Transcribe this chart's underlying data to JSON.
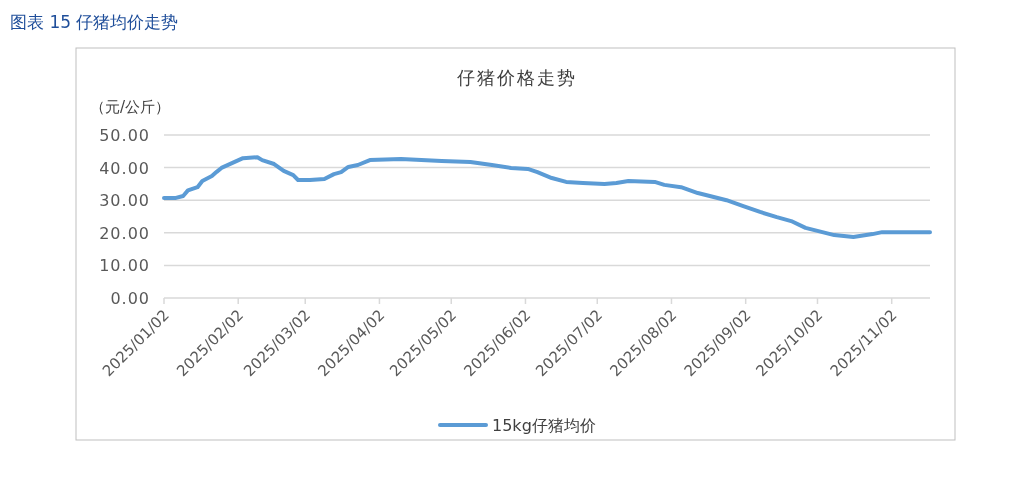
{
  "chart_data": {
    "type": "line",
    "title": "仔猪价格走势",
    "ylabel": "（元/公斤）",
    "annotations": [
      "图表 15  仔猪均价走势"
    ],
    "x": [
      "2025-01-02",
      "2025-01-07",
      "2025-01-10",
      "2025-01-12",
      "2025-01-16",
      "2025-01-18",
      "2025-01-22",
      "2025-01-24",
      "2025-01-26",
      "2025-02-04",
      "2025-02-10",
      "2025-02-12",
      "2025-02-17",
      "2025-02-21",
      "2025-02-25",
      "2025-02-27",
      "2025-03-04",
      "2025-03-10",
      "2025-03-14",
      "2025-03-17",
      "2025-03-20",
      "2025-03-24",
      "2025-03-29",
      "2025-04-11",
      "2025-04-28",
      "2025-05-10",
      "2025-05-19",
      "2025-05-27",
      "2025-06-03",
      "2025-06-07",
      "2025-06-13",
      "2025-06-19",
      "2025-06-26",
      "2025-07-05",
      "2025-07-10",
      "2025-07-15",
      "2025-07-26",
      "2025-07-30",
      "2025-08-06",
      "2025-08-13",
      "2025-08-18",
      "2025-08-25",
      "2025-09-01",
      "2025-09-08",
      "2025-09-15",
      "2025-09-21",
      "2025-09-27",
      "2025-10-09",
      "2025-10-17",
      "2025-10-25",
      "2025-10-29",
      "2025-11-18"
    ],
    "series": [
      {
        "name": "15kg仔猪均价",
        "color": "#5b9bd5",
        "values": [
          30.7,
          30.7,
          31.3,
          33,
          34,
          35.9,
          37.4,
          38.7,
          39.9,
          42.9,
          43.2,
          42.3,
          41.1,
          39,
          37.7,
          36.2,
          36.2,
          36.5,
          38,
          38.6,
          40.2,
          40.8,
          42.3,
          42.6,
          42,
          41.7,
          40.8,
          39.9,
          39.6,
          38.6,
          36.8,
          35.6,
          35.3,
          35,
          35.3,
          35.9,
          35.6,
          34.7,
          34,
          32.2,
          31.3,
          30,
          28.2,
          26.4,
          24.8,
          23.6,
          21.5,
          19.3,
          18.7,
          19.6,
          20.2,
          20.2
        ]
      }
    ],
    "xlim": [
      "2025-01-02",
      "2025-11-18"
    ],
    "xticks": [
      {
        "value": "2025-01-02",
        "label": "2025/01/02"
      },
      {
        "value": "2025-02-02",
        "label": "2025/02/02"
      },
      {
        "value": "2025-03-02",
        "label": "2025/03/02"
      },
      {
        "value": "2025-04-02",
        "label": "2025/04/02"
      },
      {
        "value": "2025-05-02",
        "label": "2025/05/02"
      },
      {
        "value": "2025-06-02",
        "label": "2025/06/02"
      },
      {
        "value": "2025-07-02",
        "label": "2025/07/02"
      },
      {
        "value": "2025-08-02",
        "label": "2025/08/02"
      },
      {
        "value": "2025-09-02",
        "label": "2025/09/02"
      },
      {
        "value": "2025-10-02",
        "label": "2025/10/02"
      },
      {
        "value": "2025-11-02",
        "label": "2025/11/02"
      }
    ],
    "ylim": [
      0,
      50
    ],
    "yticks": [
      {
        "value": 0,
        "label": "0.00"
      },
      {
        "value": 10,
        "label": "10.00"
      },
      {
        "value": 20,
        "label": "20.00"
      },
      {
        "value": 30,
        "label": "30.00"
      },
      {
        "value": 40,
        "label": "40.00"
      },
      {
        "value": 50,
        "label": "50.00"
      }
    ],
    "grid": "y",
    "legend": "bottom",
    "marker": "none",
    "line_style": "solid"
  }
}
